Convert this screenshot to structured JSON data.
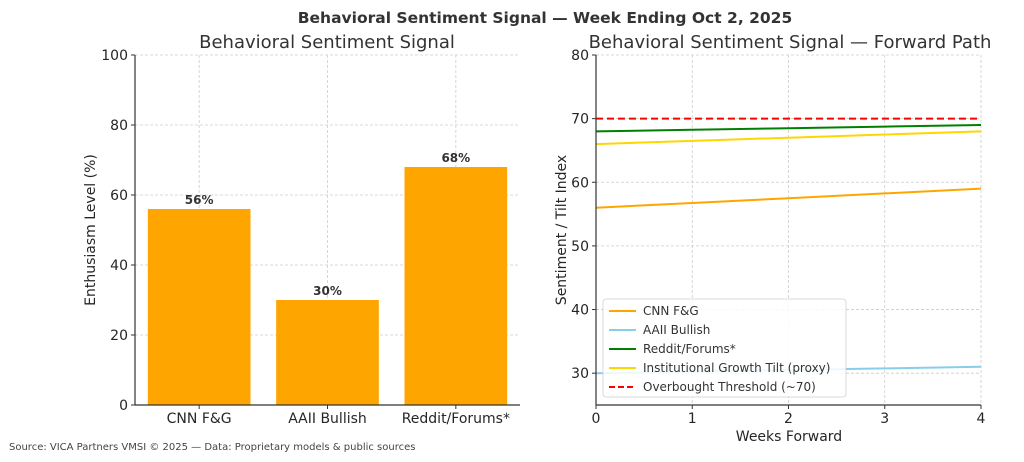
{
  "suptitle": "Behavioral Sentiment Signal — Week Ending Oct 2, 2025",
  "footer": "Source: VICA Partners VMSI © 2025 — Data: Proprietary models & public sources",
  "chart_data": [
    {
      "type": "bar",
      "title": "Behavioral Sentiment Signal",
      "xlabel": "",
      "ylabel": "Enthusiasm Level (%)",
      "categories": [
        "CNN F&G",
        "AAII Bullish",
        "Reddit/Forums*"
      ],
      "values": [
        56,
        30,
        68
      ],
      "data_labels": [
        "56%",
        "30%",
        "68%"
      ],
      "ylim": [
        0,
        100
      ],
      "yticks": [
        0,
        20,
        40,
        60,
        80,
        100
      ],
      "bar_color": "#FFA500",
      "grid": true
    },
    {
      "type": "line",
      "title": "Behavioral Sentiment Signal — Forward Path",
      "xlabel": "Weeks Forward",
      "ylabel": "Sentiment / Tilt Index",
      "x": [
        0,
        1,
        2,
        3,
        4
      ],
      "xlim": [
        0,
        4
      ],
      "xticks": [
        0,
        1,
        2,
        3,
        4
      ],
      "ylim": [
        25,
        80
      ],
      "yticks": [
        30,
        40,
        50,
        60,
        70,
        80
      ],
      "grid": true,
      "legend_position": "lower-left",
      "series": [
        {
          "name": "CNN F&G",
          "values": [
            56,
            56.75,
            57.5,
            58.25,
            59
          ],
          "color": "#FFA500",
          "style": "solid"
        },
        {
          "name": "AAII Bullish",
          "values": [
            30,
            30.25,
            30.5,
            30.75,
            31
          ],
          "color": "#87CEEB",
          "style": "solid"
        },
        {
          "name": "Reddit/Forums*",
          "values": [
            68,
            68.25,
            68.5,
            68.75,
            69
          ],
          "color": "#008000",
          "style": "solid"
        },
        {
          "name": "Institutional Growth Tilt (proxy)",
          "values": [
            66,
            66.5,
            67,
            67.5,
            68
          ],
          "color": "#FFD700",
          "style": "solid"
        },
        {
          "name": "Overbought Threshold (~70)",
          "values": [
            70,
            70,
            70,
            70,
            70
          ],
          "color": "#FF0000",
          "style": "dashed"
        }
      ]
    }
  ]
}
